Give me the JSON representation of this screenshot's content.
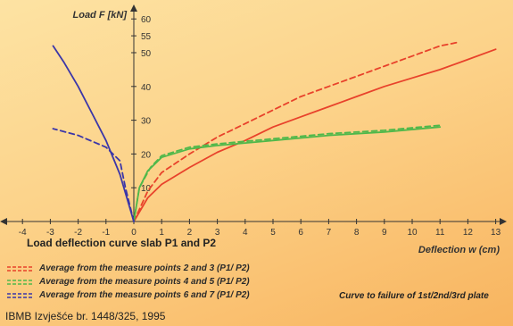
{
  "chart_data": {
    "type": "line",
    "title": "Load deflection curve slab P1 and P2",
    "xlabel": "Deflection w (cm)",
    "ylabel": "Load F [kN]",
    "xlim": [
      -4,
      13
    ],
    "ylim": [
      0,
      60
    ],
    "x_ticks": [
      -4,
      -3,
      -2,
      -1,
      0,
      1,
      2,
      3,
      4,
      5,
      6,
      7,
      8,
      9,
      10,
      11,
      12,
      13
    ],
    "y_ticks": [
      10,
      20,
      30,
      40,
      50,
      55,
      60
    ],
    "grid": false,
    "legend_position": "bottom-left",
    "series": [
      {
        "name": "Average from the measure points 2 and 3 (P1/ P2)",
        "color": "#e8422b",
        "dashed": false,
        "points": [
          [
            0,
            0
          ],
          [
            0.5,
            7
          ],
          [
            1,
            11
          ],
          [
            2,
            16
          ],
          [
            3,
            20.5
          ],
          [
            4,
            24
          ],
          [
            5,
            28
          ],
          [
            6,
            31
          ],
          [
            7,
            34
          ],
          [
            8,
            37
          ],
          [
            9,
            40
          ],
          [
            10,
            42.5
          ],
          [
            11,
            45
          ],
          [
            12,
            48
          ],
          [
            13,
            51
          ]
        ]
      },
      {
        "name": "Average from the measure points 2 and 3 (P1/ P2)",
        "color": "#e8422b",
        "dashed": true,
        "points": [
          [
            0,
            0
          ],
          [
            0.5,
            9
          ],
          [
            1,
            14.5
          ],
          [
            2,
            20
          ],
          [
            3,
            25
          ],
          [
            4,
            29
          ],
          [
            5,
            33
          ],
          [
            6,
            37
          ],
          [
            7,
            40
          ],
          [
            8,
            43
          ],
          [
            9,
            46
          ],
          [
            10,
            49
          ],
          [
            11,
            52
          ],
          [
            11.6,
            53
          ]
        ]
      },
      {
        "name": "Average from the measure points 4 and 5 (P1/ P2)",
        "color": "#4fb84a",
        "dashed": false,
        "points": [
          [
            0,
            0
          ],
          [
            0.2,
            10
          ],
          [
            0.5,
            15
          ],
          [
            1,
            19
          ],
          [
            2,
            21.5
          ],
          [
            3,
            22.5
          ],
          [
            5,
            24
          ],
          [
            7,
            25.5
          ],
          [
            9,
            26.5
          ],
          [
            11,
            28
          ]
        ]
      },
      {
        "name": "Average from the measure points 4 and 5 (P1/ P2)",
        "color": "#4fb84a",
        "dashed": true,
        "points": [
          [
            0,
            0
          ],
          [
            0.2,
            10
          ],
          [
            0.6,
            16
          ],
          [
            1,
            19.5
          ],
          [
            2,
            22
          ],
          [
            3,
            23
          ],
          [
            5,
            24.5
          ],
          [
            7,
            26
          ],
          [
            9,
            27
          ],
          [
            11,
            28.5
          ]
        ]
      },
      {
        "name": "Average from the measure points 6 and 7 (P1/ P2)",
        "color": "#3b36a8",
        "dashed": false,
        "points": [
          [
            0,
            0
          ],
          [
            -0.5,
            14
          ],
          [
            -1,
            24
          ],
          [
            -1.5,
            32
          ],
          [
            -2,
            40
          ],
          [
            -2.5,
            47
          ],
          [
            -2.9,
            52
          ]
        ]
      },
      {
        "name": "Average from the measure points 6 and 7 (P1/ P2)",
        "color": "#3b36a8",
        "dashed": true,
        "points": [
          [
            0,
            0
          ],
          [
            -0.3,
            10
          ],
          [
            -0.5,
            18
          ],
          [
            -1,
            22
          ],
          [
            -2,
            25.5
          ],
          [
            -2.9,
            27.5
          ]
        ]
      }
    ],
    "note": "Curve to failure of 1st/2nd/3rd plate",
    "source": "IBMB Izvješće br. 1448/325, 1995"
  },
  "legend": [
    {
      "label": "Average from the measure points 2 and 3 (P1/ P2)",
      "color": "#e8422b",
      "style": "dashed"
    },
    {
      "label": "Average from the measure points 4 and 5 (P1/ P2)",
      "color": "#4fb84a",
      "style": "dashed"
    },
    {
      "label": "Average from the measure points 6 and 7 (P1/ P2)",
      "color": "#3b36a8",
      "style": "dashed"
    }
  ]
}
